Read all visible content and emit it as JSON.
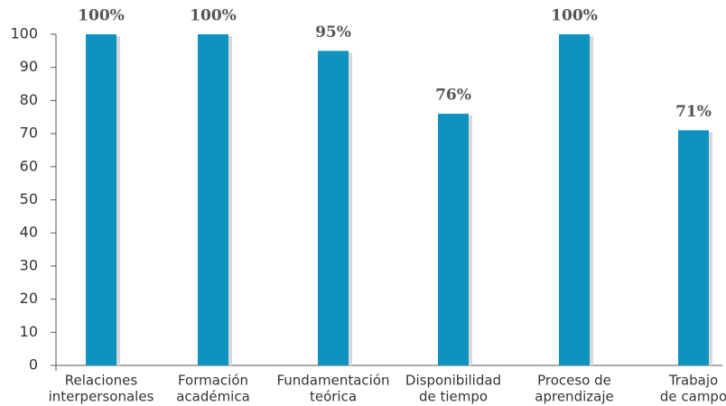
{
  "chart_data": {
    "type": "bar",
    "categories": [
      [
        "Relaciones",
        "interpersonales"
      ],
      [
        "Formación",
        "académica"
      ],
      [
        "Fundamentación",
        "teórica"
      ],
      [
        "Disponibilidad",
        "de tiempo"
      ],
      [
        "Proceso de",
        "aprendizaje"
      ],
      [
        "Trabajo",
        "de campo"
      ]
    ],
    "values": [
      100,
      100,
      95,
      76,
      100,
      71
    ],
    "value_labels": [
      "100%",
      "100%",
      "95%",
      "76%",
      "100%",
      "71%"
    ],
    "color": "#0e93bf",
    "ylim": [
      0,
      100
    ],
    "yticks": [
      0,
      10,
      20,
      30,
      40,
      50,
      60,
      70,
      80,
      90,
      100
    ],
    "grid": false
  }
}
